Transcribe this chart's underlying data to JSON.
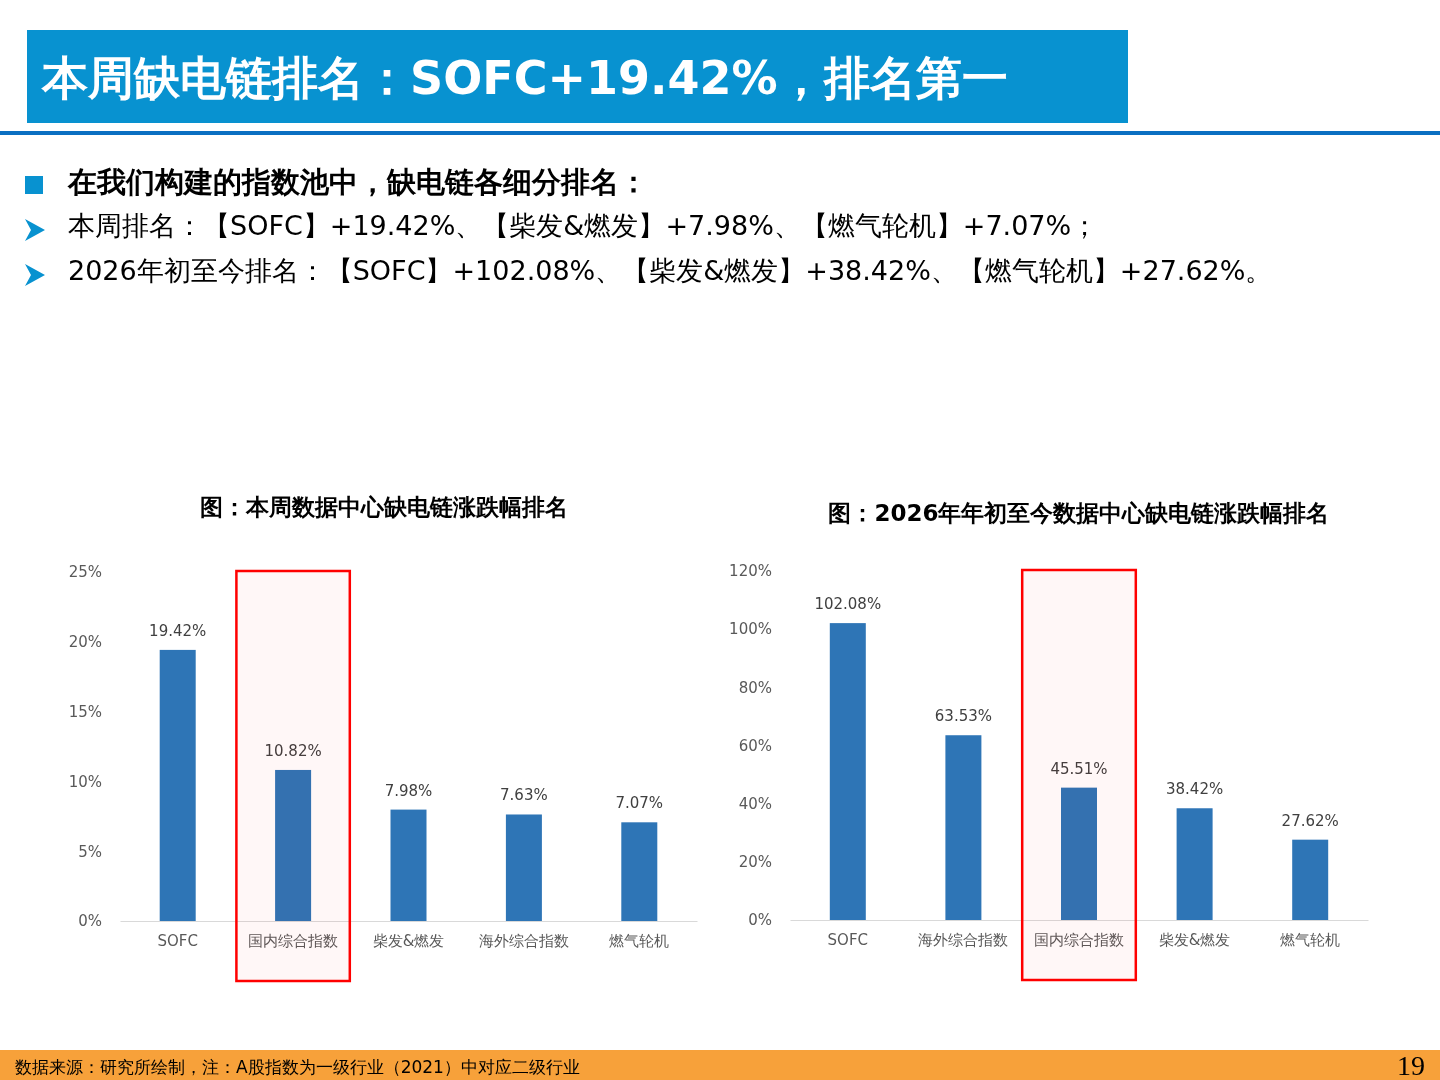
{
  "chart_data": [
    {
      "type": "bar",
      "title": "图：本周数据中心缺电链涨跌幅排名",
      "categories": [
        "SOFC",
        "国内综合指数",
        "柴发&燃发",
        "海外综合指数",
        "燃气轮机"
      ],
      "values": [
        19.42,
        10.82,
        7.98,
        7.63,
        7.07
      ],
      "color": "#2e75b6",
      "ylim": [
        0,
        25
      ],
      "yticks": [
        {
          "value": 0,
          "label": "0%"
        },
        {
          "value": 5,
          "label": "5%"
        },
        {
          "value": 10,
          "label": "10%"
        },
        {
          "value": 15,
          "label": "15%"
        },
        {
          "value": 20,
          "label": "20%"
        },
        {
          "value": 25,
          "label": "25%"
        }
      ],
      "value_labels": [
        "19.42%",
        "10.82%",
        "7.98%",
        "7.63%",
        "7.07%"
      ],
      "grid": false,
      "bands": [
        {
          "axis": "x",
          "from": "国内综合指数",
          "to": "国内综合指数",
          "color": "#ff0000"
        }
      ],
      "annotations": [
        "本周缺电链排名：SOFC+19.42%，排名第一",
        "在我们构建的指数池中，缺电链各细分排名：",
        "本周排名：【SOFC】+19.42%、【柴发&燃发】+7.98%、【燃气轮机】+7.07%；",
        "2026年初至今排名：【SOFC】+102.08%、【柴发&燃发】+38.42%、【燃气轮机】+27.62%。"
      ]
    },
    {
      "type": "bar",
      "title": "图：2026年年初至今数据中心缺电链涨跌幅排名",
      "categories": [
        "SOFC",
        "海外综合指数",
        "国内综合指数",
        "柴发&燃发",
        "燃气轮机"
      ],
      "values": [
        102.08,
        63.53,
        45.51,
        38.42,
        27.62
      ],
      "color": "#2e75b6",
      "ylim": [
        0,
        120
      ],
      "yticks": [
        {
          "value": 0,
          "label": "0%"
        },
        {
          "value": 20,
          "label": "20%"
        },
        {
          "value": 40,
          "label": "40%"
        },
        {
          "value": 60,
          "label": "60%"
        },
        {
          "value": 80,
          "label": "80%"
        },
        {
          "value": 100,
          "label": "100%"
        },
        {
          "value": 120,
          "label": "120%"
        }
      ],
      "value_labels": [
        "102.08%",
        "63.53%",
        "45.51%",
        "38.42%",
        "27.62%"
      ],
      "grid": false,
      "bands": [
        {
          "axis": "x",
          "from": "国内综合指数",
          "to": "国内综合指数",
          "color": "#ff0000"
        }
      ],
      "annotations": [
        "数据来源：研究所绘制，注：A股指数为一级行业（2021）中对应二级行业",
        "19"
      ]
    }
  ]
}
